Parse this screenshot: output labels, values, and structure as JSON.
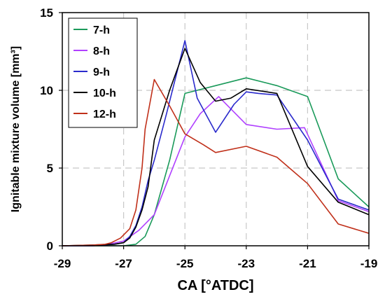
{
  "chart_data": {
    "type": "line",
    "xlabel": "CA [°ATDC]",
    "ylabel": "Ignitable mixture volume [mm³]",
    "xlim": [
      -29,
      -19
    ],
    "ylim": [
      0,
      15
    ],
    "xticks": [
      -29,
      -27,
      -25,
      -23,
      -21,
      -19
    ],
    "yticks": [
      0,
      5,
      10,
      15
    ],
    "grid": true,
    "legend_position": "top-left",
    "series": [
      {
        "name": "7-h",
        "color": "#1a9a5a",
        "x": [
          -29,
          -28,
          -27.4,
          -27,
          -26.6,
          -26.3,
          -26,
          -25.5,
          -25,
          -24,
          -23,
          -22,
          -21,
          -20,
          -19
        ],
        "y": [
          0,
          0,
          0,
          0,
          0.1,
          0.6,
          2.0,
          5.5,
          9.8,
          10.3,
          10.8,
          10.3,
          9.6,
          4.3,
          2.5
        ]
      },
      {
        "name": "8-h",
        "color": "#b040ff",
        "x": [
          -29,
          -28,
          -27.5,
          -27,
          -26.5,
          -26,
          -25.5,
          -25,
          -24.5,
          -23.9,
          -23,
          -22,
          -21.1,
          -20,
          -19
        ],
        "y": [
          0,
          0,
          0.1,
          0.3,
          1.0,
          2.0,
          4.5,
          7.0,
          8.5,
          9.6,
          7.8,
          7.5,
          7.6,
          2.9,
          2.2
        ]
      },
      {
        "name": "9-h",
        "color": "#2a2acc",
        "x": [
          -29,
          -28,
          -27.3,
          -27,
          -26.8,
          -26.6,
          -26.4,
          -26.2,
          -26,
          -25.6,
          -25,
          -24.6,
          -24,
          -23.4,
          -23,
          -22.6,
          -22,
          -21,
          -20,
          -19
        ],
        "y": [
          0,
          0,
          0.1,
          0.2,
          0.6,
          1.3,
          2.5,
          4.2,
          5.5,
          8.5,
          13.2,
          9.5,
          7.3,
          9.1,
          9.9,
          9.8,
          9.7,
          6.8,
          3.0,
          2.3
        ]
      },
      {
        "name": "10-h",
        "color": "#000000",
        "x": [
          -29,
          -28,
          -27.3,
          -27,
          -26.8,
          -26.6,
          -26.4,
          -26.2,
          -26,
          -25.5,
          -25,
          -24.5,
          -24,
          -23.5,
          -23,
          -22,
          -21,
          -20,
          -19
        ],
        "y": [
          0,
          0.05,
          0.1,
          0.2,
          0.5,
          1.2,
          2.3,
          3.8,
          6.8,
          10.0,
          12.7,
          10.5,
          9.3,
          9.5,
          10.1,
          9.8,
          5.1,
          2.8,
          2.0
        ]
      },
      {
        "name": "12-h",
        "color": "#c0301a",
        "x": [
          -29,
          -28,
          -27.6,
          -27.4,
          -27.1,
          -26.8,
          -26.6,
          -26.4,
          -26.3,
          -26,
          -25.5,
          -25,
          -24.4,
          -24,
          -23,
          -22,
          -21,
          -20,
          -19
        ],
        "y": [
          0,
          0.05,
          0.1,
          0.2,
          0.5,
          1.1,
          2.3,
          5.0,
          7.5,
          10.7,
          9.0,
          7.2,
          6.5,
          6.0,
          6.4,
          5.7,
          4.0,
          1.4,
          0.8
        ]
      }
    ]
  }
}
